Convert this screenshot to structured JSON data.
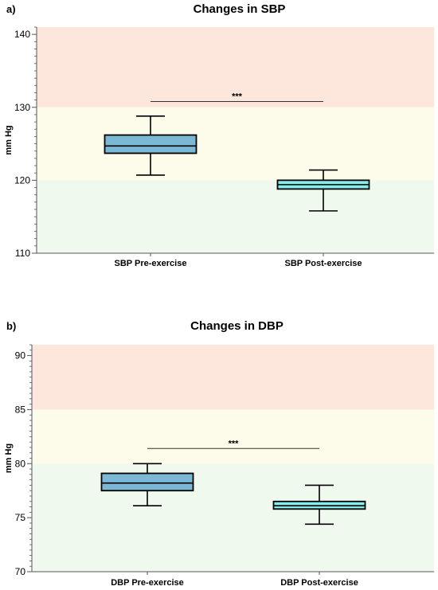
{
  "colors": {
    "band_high": "#fde7dd",
    "band_mid": "#fdfcea",
    "band_low": "#eff9ee",
    "pre_box": "#7bb8d6",
    "post_box": "#85eeec"
  },
  "chart_data": [
    {
      "panel": "a)",
      "type": "box",
      "title": "Changes in SBP",
      "ylabel": "mm Hg",
      "ylim": [
        110,
        141
      ],
      "yticks": [
        110,
        120,
        130,
        140
      ],
      "minor_tick_step": 1,
      "bands": [
        {
          "from": 130,
          "to": 141,
          "color": "#fde7dd"
        },
        {
          "from": 120,
          "to": 130,
          "color": "#fdfcea"
        },
        {
          "from": 110,
          "to": 120,
          "color": "#eff9ee"
        }
      ],
      "categories": [
        "SBP Pre-exercise",
        "SBP Post-exercise"
      ],
      "boxes": [
        {
          "min": 120.7,
          "q1": 123.7,
          "median": 124.7,
          "q3": 126.2,
          "max": 128.8,
          "color": "#7bb8d6"
        },
        {
          "min": 115.8,
          "q1": 118.8,
          "median": 119.4,
          "q3": 120.0,
          "max": 121.4,
          "color": "#85eeec"
        }
      ],
      "significance": {
        "label": "***",
        "y": 130.8
      }
    },
    {
      "panel": "b)",
      "type": "box",
      "title": "Changes in DBP",
      "ylabel": "mm Hg",
      "ylim": [
        70,
        91
      ],
      "yticks": [
        70,
        75,
        80,
        85,
        90
      ],
      "minor_tick_step": 0.5,
      "bands": [
        {
          "from": 85,
          "to": 91,
          "color": "#fde7dd"
        },
        {
          "from": 80,
          "to": 85,
          "color": "#fdfcea"
        },
        {
          "from": 70,
          "to": 80,
          "color": "#eff9ee"
        }
      ],
      "categories": [
        "DBP Pre-exercise",
        "DBP Post-exercise"
      ],
      "boxes": [
        {
          "min": 76.1,
          "q1": 77.5,
          "median": 78.2,
          "q3": 79.1,
          "max": 80.0,
          "color": "#7bb8d6"
        },
        {
          "min": 74.4,
          "q1": 75.8,
          "median": 76.1,
          "q3": 76.5,
          "max": 78.0,
          "color": "#85eeec"
        }
      ],
      "significance": {
        "label": "***",
        "y": 81.4
      }
    }
  ]
}
